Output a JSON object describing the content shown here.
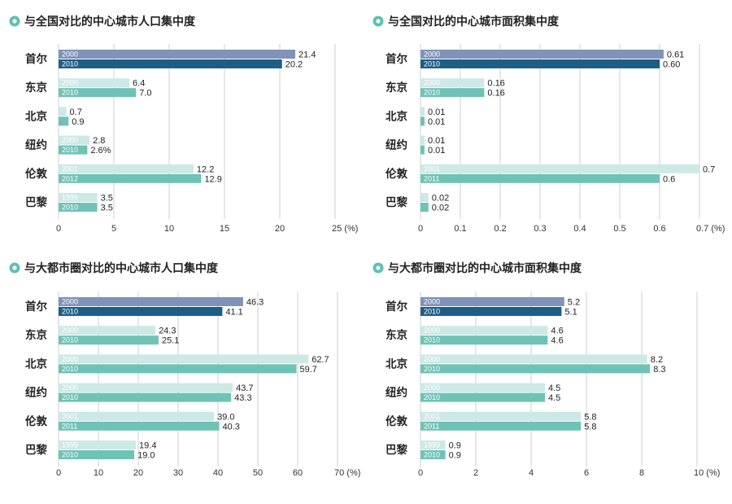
{
  "colors": {
    "seoul_top": "#7f93b8",
    "seoul_bottom": "#1d5e86",
    "other_top": "#cce9e5",
    "other_bottom": "#6fc2b6",
    "title_dot": "#5fbfb3",
    "grid": "#cfcfcf",
    "seoul_value_text": "#1d5e86"
  },
  "chart_data": [
    {
      "type": "bar",
      "orientation": "horizontal",
      "title": "与全国对比的中心城市人口集中度",
      "categories": [
        "首尔",
        "东京",
        "北京",
        "纽约",
        "伦敦",
        "巴黎"
      ],
      "series": [
        {
          "labels": [
            "2000",
            "2000",
            "",
            "2000",
            "2001",
            "1999"
          ],
          "values": [
            21.4,
            6.4,
            0.7,
            2.8,
            12.2,
            3.5
          ],
          "value_labels": [
            "21.4",
            "6.4",
            "0.7",
            "2.8",
            "12.2",
            "3.5"
          ]
        },
        {
          "labels": [
            "2010",
            "2010",
            "",
            "2010",
            "2012",
            "2010"
          ],
          "values": [
            20.2,
            7.0,
            0.9,
            2.6,
            12.9,
            3.5
          ],
          "value_labels": [
            "20.2",
            "7.0",
            "0.9",
            "2.6%",
            "12.9",
            "3.5"
          ]
        }
      ],
      "xlim": [
        0,
        25
      ],
      "ticks": [
        "0",
        "5",
        "10",
        "15",
        "20",
        "25 (%)"
      ],
      "grid": true
    },
    {
      "type": "bar",
      "orientation": "horizontal",
      "title": "与全国对比的中心城市面积集中度",
      "categories": [
        "首尔",
        "东京",
        "北京",
        "纽约",
        "伦敦",
        "巴黎"
      ],
      "series": [
        {
          "labels": [
            "2000",
            "2000",
            "",
            "2000",
            "2001",
            ""
          ],
          "values": [
            0.61,
            0.16,
            0.01,
            0.01,
            0.7,
            0.02
          ],
          "value_labels": [
            "0.61",
            "0.16",
            "0.01",
            "0.01",
            "0.7",
            "0.02"
          ]
        },
        {
          "labels": [
            "2010",
            "2010",
            "",
            "2010",
            "2011",
            ""
          ],
          "values": [
            0.6,
            0.16,
            0.01,
            0.01,
            0.6,
            0.02
          ],
          "value_labels": [
            "0.60",
            "0.16",
            "0.01",
            "0.01",
            "0.6",
            "0.02"
          ]
        }
      ],
      "xlim": [
        0,
        0.7
      ],
      "ticks": [
        "0",
        "0.1",
        "0.2",
        "0.3",
        "0.4",
        "0.5",
        "0.6",
        "0.7 (%)"
      ],
      "grid": true
    },
    {
      "type": "bar",
      "orientation": "horizontal",
      "title": "与大都市圈对比的中心城市人口集中度",
      "categories": [
        "首尔",
        "东京",
        "北京",
        "纽约",
        "伦敦",
        "巴黎"
      ],
      "series": [
        {
          "labels": [
            "2000",
            "2000",
            "2000",
            "2000",
            "2001",
            "1999"
          ],
          "values": [
            46.3,
            24.3,
            62.7,
            43.7,
            39.0,
            19.4
          ],
          "value_labels": [
            "46.3",
            "24.3",
            "62.7",
            "43.7",
            "39.0",
            "19.4"
          ]
        },
        {
          "labels": [
            "2010",
            "2010",
            "2010",
            "2010",
            "2011",
            "2010"
          ],
          "values": [
            41.1,
            25.1,
            59.7,
            43.3,
            40.3,
            19.0
          ],
          "value_labels": [
            "41.1",
            "25.1",
            "59.7",
            "43.3",
            "40.3",
            "19.0"
          ]
        }
      ],
      "xlim": [
        0,
        70
      ],
      "ticks": [
        "0",
        "10",
        "20",
        "30",
        "40",
        "50",
        "60",
        "70 (%)"
      ],
      "grid": true
    },
    {
      "type": "bar",
      "orientation": "horizontal",
      "title": "与大都市圈对比的中心城市面积集中度",
      "categories": [
        "首尔",
        "东京",
        "北京",
        "纽约",
        "伦敦",
        "巴黎"
      ],
      "series": [
        {
          "labels": [
            "2000",
            "2000",
            "2000",
            "2000",
            "2001",
            "1999"
          ],
          "values": [
            5.2,
            4.6,
            8.2,
            4.5,
            5.8,
            0.9
          ],
          "value_labels": [
            "5.2",
            "4.6",
            "8.2",
            "4.5",
            "5.8",
            "0.9"
          ]
        },
        {
          "labels": [
            "2010",
            "2010",
            "2010",
            "2010",
            "2011",
            "2010"
          ],
          "values": [
            5.1,
            4.6,
            8.3,
            4.5,
            5.8,
            0.9
          ],
          "value_labels": [
            "5.1",
            "4.6",
            "8.3",
            "4.5",
            "5.8",
            "0.9"
          ]
        }
      ],
      "xlim": [
        0,
        10
      ],
      "ticks": [
        "0",
        "2",
        "4",
        "6",
        "8",
        "10 (%)"
      ],
      "grid": true
    }
  ]
}
